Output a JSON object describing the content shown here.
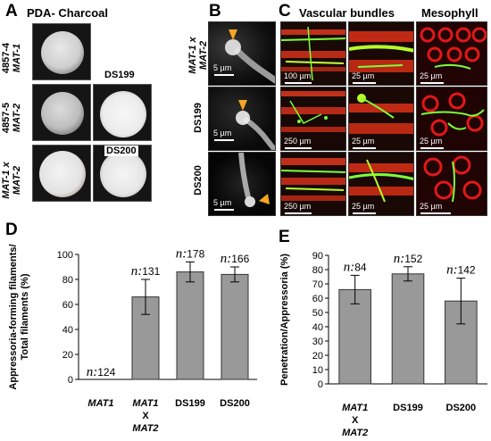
{
  "panel_letters": {
    "a": "A",
    "b": "B",
    "c": "C",
    "d": "D",
    "e": "E"
  },
  "panel_a": {
    "title": "PDA- Charcoal",
    "rows": [
      {
        "line1": "4857-4",
        "line2": "MAT-1"
      },
      {
        "line1": "4857-5",
        "line2": "MAT-2"
      },
      {
        "line1": "MAT-1 x",
        "line2": "MAT-2"
      }
    ],
    "labels": {
      "ds199": "DS199",
      "ds200": "DS200"
    }
  },
  "panel_b": {
    "rows": [
      {
        "line1": "MAT-1 x",
        "line2": "MAT-2",
        "scale": "5 µm"
      },
      {
        "line1": "DS199",
        "line2": "",
        "scale": "5 µm"
      },
      {
        "line1": "DS200",
        "line2": "",
        "scale": "5 µm"
      }
    ]
  },
  "panel_c": {
    "col1": "Vascular bundles",
    "col2": "Mesophyll",
    "scales": [
      [
        "100 µm",
        "25 µm",
        "25 µm"
      ],
      [
        "250 µm",
        "25 µm",
        "25 µm"
      ],
      [
        "250 µm",
        "25 µm",
        "25 µm"
      ]
    ]
  },
  "colors": {
    "bar": "#999999",
    "arrow": "#f5a623",
    "fungus": "#7cff3a",
    "plant": "#e21818"
  },
  "chart_data": [
    {
      "panel": "D",
      "type": "bar",
      "ylabel": "Appressoria-forming filaments/ Total filaments (%)",
      "categories": [
        "MAT1",
        "MAT1 X MAT2",
        "DS199",
        "DS200"
      ],
      "values": [
        0,
        66,
        86,
        84
      ],
      "errors": [
        0,
        14,
        8,
        6
      ],
      "n_labels": [
        "n:124",
        "n:131",
        "n:178",
        "n:166"
      ],
      "ylim": [
        0,
        100
      ],
      "yticks": [
        0,
        20,
        40,
        60,
        80,
        100
      ]
    },
    {
      "panel": "E",
      "type": "bar",
      "ylabel": "Penetration/Appressoria (%)",
      "categories": [
        "MAT1 X MAT2",
        "DS199",
        "DS200"
      ],
      "values": [
        66,
        77,
        58
      ],
      "errors": [
        10,
        5,
        16
      ],
      "n_labels": [
        "n:84",
        "n:152",
        "n:142"
      ],
      "ylim": [
        0,
        90
      ],
      "yticks": [
        0,
        10,
        20,
        30,
        40,
        50,
        60,
        70,
        80,
        90
      ]
    }
  ]
}
